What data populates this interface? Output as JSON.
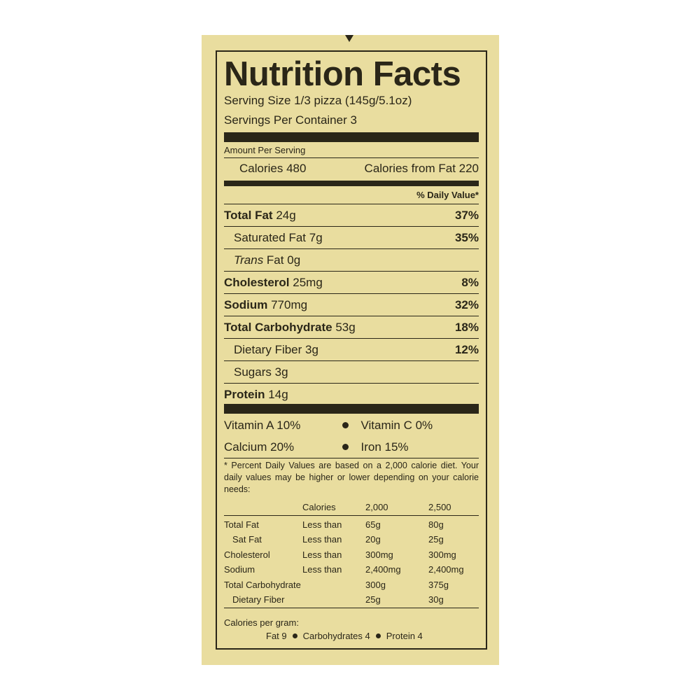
{
  "label": {
    "title": "Nutrition Facts",
    "serving_size": "Serving Size 1/3 pizza (145g/5.1oz)",
    "servings_per_container": "Servings Per Container 3",
    "amount_per_serving": "Amount Per Serving",
    "calories": "Calories 480",
    "calories_from_fat": "Calories from Fat 220",
    "daily_value_header": "% Daily Value*",
    "nutrients": [
      {
        "name": "Total Fat",
        "amount": "24g",
        "dv": "37%",
        "bold": true,
        "indent": false
      },
      {
        "name": "Saturated Fat",
        "amount": "7g",
        "dv": "35%",
        "bold": false,
        "indent": true
      },
      {
        "name": "Trans",
        "name2": " Fat",
        "amount": "0g",
        "dv": "",
        "bold": false,
        "indent": true,
        "italic": true
      },
      {
        "name": "Cholesterol",
        "amount": "25mg",
        "dv": "8%",
        "bold": true,
        "indent": false
      },
      {
        "name": "Sodium",
        "amount": "770mg",
        "dv": "32%",
        "bold": true,
        "indent": false
      },
      {
        "name": "Total Carbohydrate",
        "amount": "53g",
        "dv": "18%",
        "bold": true,
        "indent": false
      },
      {
        "name": "Dietary Fiber",
        "amount": "3g",
        "dv": "12%",
        "bold": false,
        "indent": true
      },
      {
        "name": "Sugars",
        "amount": "3g",
        "dv": "",
        "bold": false,
        "indent": true
      },
      {
        "name": "Protein",
        "amount": "14g",
        "dv": "",
        "bold": true,
        "indent": false
      }
    ],
    "vitamins": [
      [
        "Vitamin A 10%",
        "Vitamin C 0%"
      ],
      [
        "Calcium 20%",
        "Iron 15%"
      ]
    ],
    "footnote": "* Percent Daily Values are based on a 2,000 calorie diet. Your daily values may be higher or lower depending on your calorie needs:",
    "dv_table": {
      "header": [
        "",
        "Calories",
        "2,000",
        "2,500"
      ],
      "rows": [
        [
          "Total Fat",
          "Less than",
          "65g",
          "80g"
        ],
        [
          "Sat Fat",
          "Less than",
          "20g",
          "25g"
        ],
        [
          "Cholesterol",
          "Less than",
          "300mg",
          "300mg"
        ],
        [
          "Sodium",
          "Less than",
          "2,400mg",
          "2,400mg"
        ],
        [
          "Total Carbohydrate",
          "",
          "300g",
          "375g"
        ],
        [
          "Dietary Fiber",
          "",
          "25g",
          "30g"
        ]
      ]
    },
    "calories_per_gram": "Calories per gram:",
    "cpg_items": [
      "Fat 9",
      "Carbohydrates 4",
      "Protein 4"
    ]
  },
  "colors": {
    "background": "#e9dd9f",
    "ink": "#2a2618"
  }
}
